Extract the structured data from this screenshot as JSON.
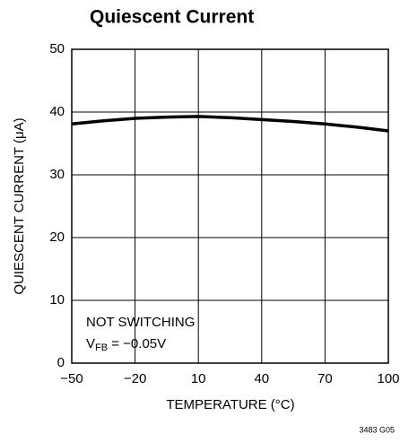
{
  "chart_data": {
    "type": "line",
    "title": "Quiescent Current",
    "x_label": "TEMPERATURE (°C)",
    "y_label": "QUIESCENT CURRENT (μA)",
    "x": [
      -50,
      -35,
      -20,
      -5,
      10,
      25,
      40,
      55,
      70,
      85,
      100
    ],
    "series": [
      {
        "name": "Quiescent Current",
        "color": "#000000",
        "values": [
          38.1,
          38.6,
          39.0,
          39.2,
          39.3,
          39.1,
          38.8,
          38.5,
          38.1,
          37.6,
          37.0
        ]
      }
    ],
    "xlim": [
      -50,
      100
    ],
    "xticks": [
      {
        "value": -50,
        "label": "−50"
      },
      {
        "value": -20,
        "label": "−20"
      },
      10,
      40,
      70,
      100
    ],
    "ylim": [
      0,
      50
    ],
    "yticks": [
      0,
      10,
      20,
      30,
      40,
      50
    ],
    "grid": true,
    "annotations": [
      {
        "text": "NOT SWITCHING"
      },
      {
        "parts": [
          "V",
          "FB",
          " = −0.05V"
        ]
      }
    ],
    "footnote": "3483 G05"
  }
}
